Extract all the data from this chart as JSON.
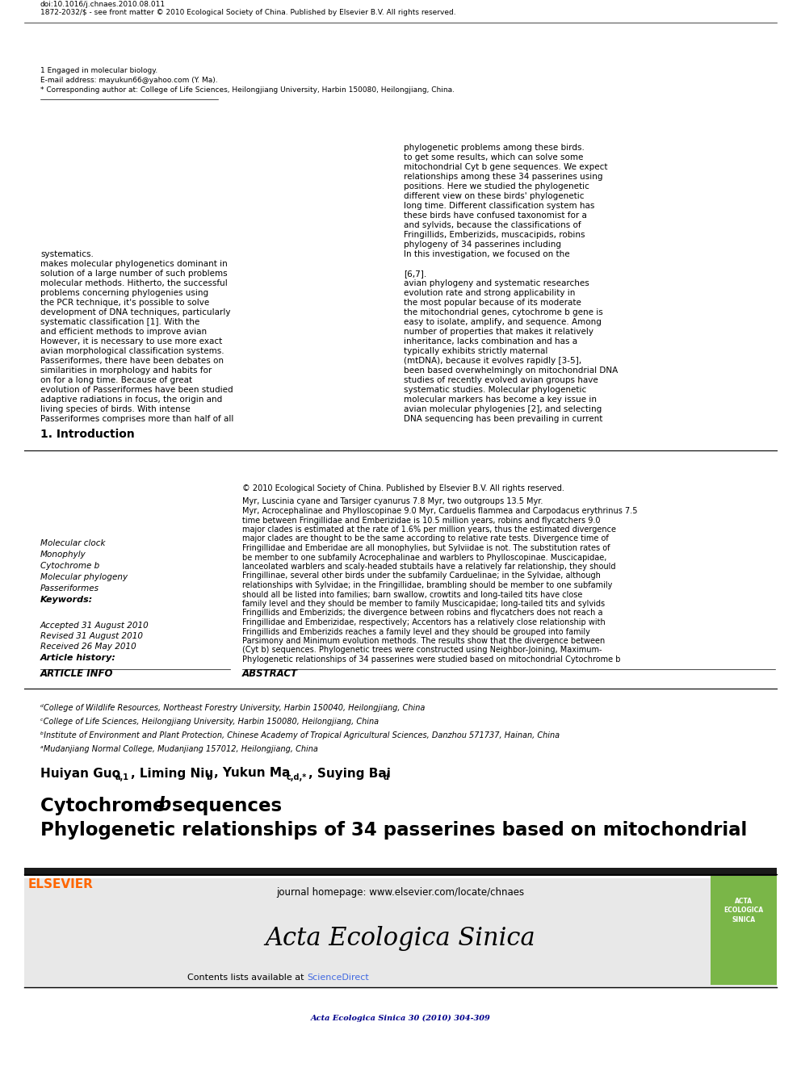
{
  "journal_ref": "Acta Ecologica Sinica 30 (2010) 304-309",
  "journal_ref_color": "#00008B",
  "header_bg": "#E8E8E8",
  "contents_text": "Contents lists available at ",
  "sciencedirect_text": "ScienceDirect",
  "sciencedirect_color": "#4169E1",
  "journal_title": "Acta Ecologica Sinica",
  "journal_homepage": "journal homepage: www.elsevier.com/locate/chnaes",
  "elsevier_color": "#FF6600",
  "paper_title_line1": "Phylogenetic relationships of 34 passerines based on mitochondrial",
  "paper_title_line2": "Cytochrome ",
  "paper_title_italic": "b",
  "paper_title_line2_end": " sequences",
  "authors": "Huiyan Guo",
  "authors_sup1": "a,1",
  "authors_mid": ", Liming Niu",
  "authors_sup2": "b",
  "authors_mid2": ", Yukun Ma",
  "authors_sup3": "c,d,*",
  "authors_mid3": ", Suying Bai",
  "authors_sup4": "d",
  "affil_a": "ᵃMudanjiang Normal College, Mudanjiang 157012, Heilongjiang, China",
  "affil_b": "ᵇInstitute of Environment and Plant Protection, Chinese Academy of Tropical Agricultural Sciences, Danzhou 571737, Hainan, China",
  "affil_c": "ᶜCollege of Life Sciences, Heilongjiang University, Harbin 150080, Heilongjiang, China",
  "affil_d": "ᵈCollege of Wildlife Resources, Northeast Forestry University, Harbin 150040, Heilongjiang, China",
  "article_info_title": "ARTICLE INFO",
  "article_history_title": "Article history:",
  "received": "Received 26 May 2010",
  "revised": "Revised 31 August 2010",
  "accepted": "Accepted 31 August 2010",
  "keywords_title": "Keywords:",
  "keywords": [
    "Passeriformes",
    "Molecular phylogeny",
    "Cytochrome b",
    "Monophyly",
    "Molecular clock"
  ],
  "abstract_title": "ABSTRACT",
  "abstract_text": "Phylogenetic relationships of 34 passerines were studied based on mitochondrial Cytochrome b (Cyt b) sequences. Phylogenetic trees were constructed using Neighbor-Joining, Maximum-Parsimony and Minimum evolution methods. The results show that the divergence between Fringillids and Emberizids reaches a family level and they should be grouped into family Fringillidae and Emberizidae, respectively; Accentors has a relatively close relationship with Fringillids and Emberizids; the divergence between robins and flycatchers does not reach a family level and they should be member to family Muscicapidae; long-tailed tits and sylvids should all be listed into families; barn swallow, crowtits and long-tailed tits have close relationships with Sylvidae; in the Fringillidae, brambling should be member to one subfamily Fringillinae, several other birds under the subfamily Carduelinae; in the Sylvidae, although lanceolated warblers and scaly-headed stubtails have a relatively far relationship, they should be member to one subfamily Acrocephalinae and warblers to Phylloscopinae. Muscicapidae, Fringillidae and Emberidae are all monophylies, but Sylviidae is not. The substitution rates of major clades are thought to be the same according to relative rate tests. Divergence time of major clades is estimated at the rate of 1.6% per million years, thus the estimated divergence time between Fringillidae and Emberizidae is 10.5 million years, robins and flycatchers 9.0 Myr, Acrocephalinae and Phylloscopinae 9.0 Myr, Carduelis flammea and Carpodacus erythrinus 7.5 Myr, Luscinia cyane and Tarsiger cyanurus 7.8 Myr, two outgroups 13.5 Myr.",
  "copyright_text": "© 2010 Ecological Society of China. Published by Elsevier B.V. All rights reserved.",
  "section1_title": "1. Introduction",
  "intro_left": "Passeriformes comprises more than half of all living species of birds. With intense adaptive radiations in focus, the origin and evolution of Passeriformes have been studied on for a long time. Because of great similarities in morphology and habits for Passeriformes, there have been debates on avian morphological classification systems. However, it is necessary to use more exact and efficient methods to improve avian systematic classification [1]. With the development of DNA techniques, particularly the PCR technique, it's possible to solve problems concerning phylogenies using molecular methods. Hitherto, the successful solution of a large number of such problems makes molecular phylogenetics dominant in systematics.",
  "intro_right": "DNA sequencing has been prevailing in current avian molecular phylogenies [2], and selecting molecular markers has become a key issue in systematic studies. Molecular phylogenetic studies of recently evolved avian groups have been based overwhelmingly on mitochondrial DNA (mtDNA), because it evolves rapidly [3-5], typically exhibits strictly maternal inheritance, lacks combination and has a number of properties that makes it relatively easy to isolate, amplify, and sequence. Among the mitochondrial genes, cytochrome b gene is the most popular because of its moderate evolution rate and strong applicability in avian phylogeny and systematic researches [6,7].\n    In this investigation, we focused on the phylogeny of 34 passerines including Fringillids, Emberizids, muscacipids, robins and sylvids, because the classifications of these birds have confused taxonomist for a long time. Different classification system has different view on these birds' phylogenetic positions. Here we studied the phylogenetic relationships among these 34 passerines using mitochondrial Cyt b gene sequences. We expect to get some results, which can solve some phylogenetic problems among these birds.",
  "footnote_star": "* Corresponding author at: College of Life Sciences, Heilongjiang University, Harbin 150080, Heilongjiang, China.",
  "footnote_email": "E-mail address: mayukun66@yahoo.com (Y. Ma).",
  "footnote_1": "1 Engaged in molecular biology.",
  "bottom_ref": "1872-2032/$ - see front matter © 2010 Ecological Society of China. Published by Elsevier B.V. All rights reserved.",
  "doi": "doi:10.1016/j.chnaes.2010.08.011"
}
